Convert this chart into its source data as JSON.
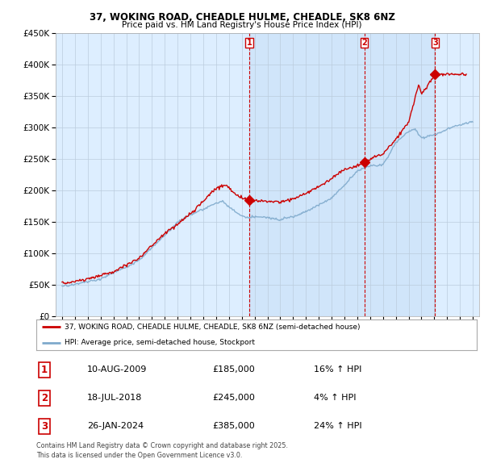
{
  "title": "37, WOKING ROAD, CHEADLE HULME, CHEADLE, SK8 6NZ",
  "subtitle": "Price paid vs. HM Land Registry's House Price Index (HPI)",
  "legend_line1": "37, WOKING ROAD, CHEADLE HULME, CHEADLE, SK8 6NZ (semi-detached house)",
  "legend_line2": "HPI: Average price, semi-detached house, Stockport",
  "sale1_date": "10-AUG-2009",
  "sale1_price": "£185,000",
  "sale1_hpi": "16% ↑ HPI",
  "sale2_date": "18-JUL-2018",
  "sale2_price": "£245,000",
  "sale2_hpi": "4% ↑ HPI",
  "sale3_date": "26-JAN-2024",
  "sale3_price": "£385,000",
  "sale3_hpi": "24% ↑ HPI",
  "footnote": "Contains HM Land Registry data © Crown copyright and database right 2025.\nThis data is licensed under the Open Government Licence v3.0.",
  "sale1_year": 2009.6,
  "sale2_year": 2018.55,
  "sale3_year": 2024.07,
  "sale1_price_val": 185000,
  "sale2_price_val": 245000,
  "sale3_price_val": 385000,
  "ylim": [
    0,
    450000
  ],
  "xlim_start": 1994.5,
  "xlim_end": 2027.5,
  "property_color": "#cc0000",
  "hpi_color": "#7faacc",
  "shade_color": "#ddeeff",
  "background_color": "#ddeeff",
  "plot_bg_color": "#ffffff",
  "grid_color": "#bbccdd"
}
